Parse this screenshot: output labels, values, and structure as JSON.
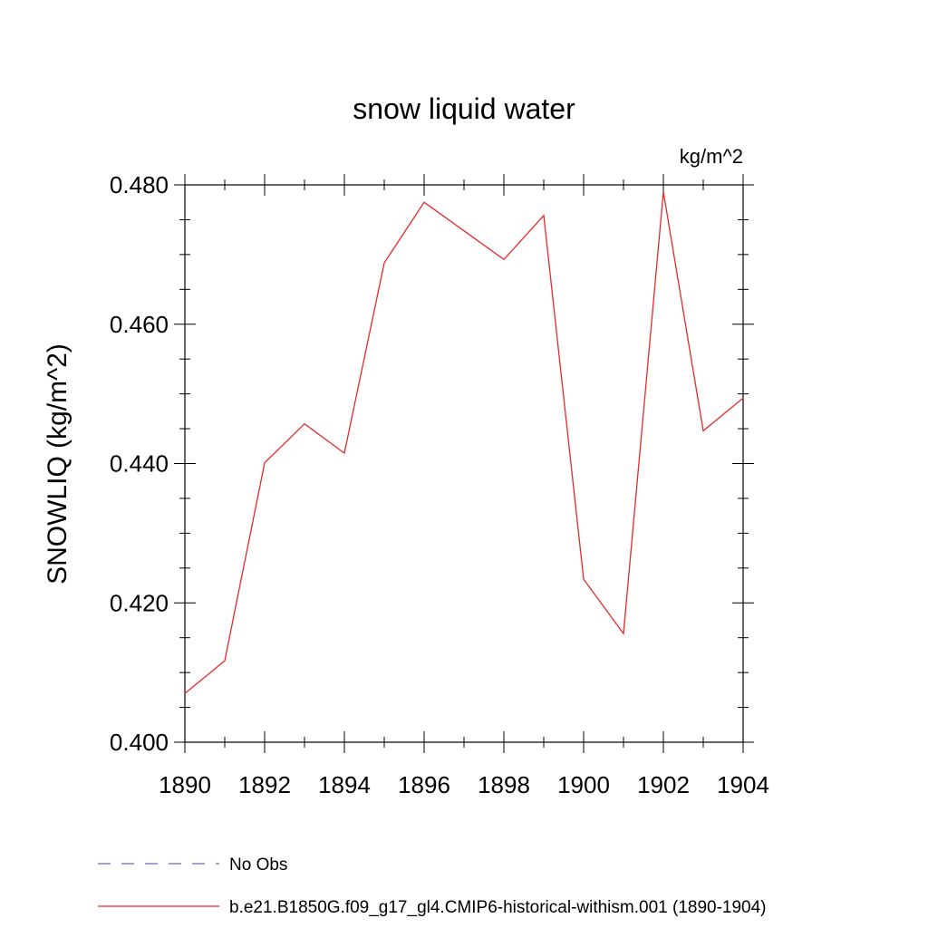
{
  "chart_data": {
    "type": "line",
    "title": "snow liquid water",
    "units_label": "kg/m^2",
    "ylabel": "SNOWLIQ  (kg/m^2)",
    "xlabel": "",
    "xlim": [
      1890,
      1904
    ],
    "ylim": [
      0.4,
      0.48
    ],
    "x_ticks": [
      1890,
      1892,
      1894,
      1896,
      1898,
      1900,
      1902,
      1904
    ],
    "x_tick_labels": [
      "1890",
      "1892",
      "1894",
      "1896",
      "1898",
      "1900",
      "1902",
      "1904"
    ],
    "y_ticks": [
      0.4,
      0.42,
      0.44,
      0.46,
      0.48
    ],
    "y_tick_labels": [
      "0.400",
      "0.420",
      "0.440",
      "0.460",
      "0.480"
    ],
    "grid": false,
    "legend_position": "bottom",
    "series": [
      {
        "name": "b.e21.B1850G.f09_g17_gl4.CMIP6-historical-withism.001 (1890-1904)",
        "color": "#e8282a",
        "style": "solid",
        "x": [
          1890,
          1891,
          1892,
          1893,
          1894,
          1895,
          1896,
          1897,
          1898,
          1899,
          1900,
          1901,
          1902,
          1903,
          1904
        ],
        "values": [
          0.407,
          0.4117,
          0.4401,
          0.4457,
          0.4415,
          0.4688,
          0.4775,
          0.4734,
          0.4693,
          0.4756,
          0.4234,
          0.4156,
          0.479,
          0.4447,
          0.4494
        ]
      }
    ],
    "legend": [
      {
        "label": "No Obs",
        "color": "#6b6bb5",
        "style": "dashed"
      },
      {
        "label": "b.e21.B1850G.f09_g17_gl4.CMIP6-historical-withism.001 (1890-1904)",
        "color": "#e8282a",
        "style": "solid"
      }
    ]
  }
}
